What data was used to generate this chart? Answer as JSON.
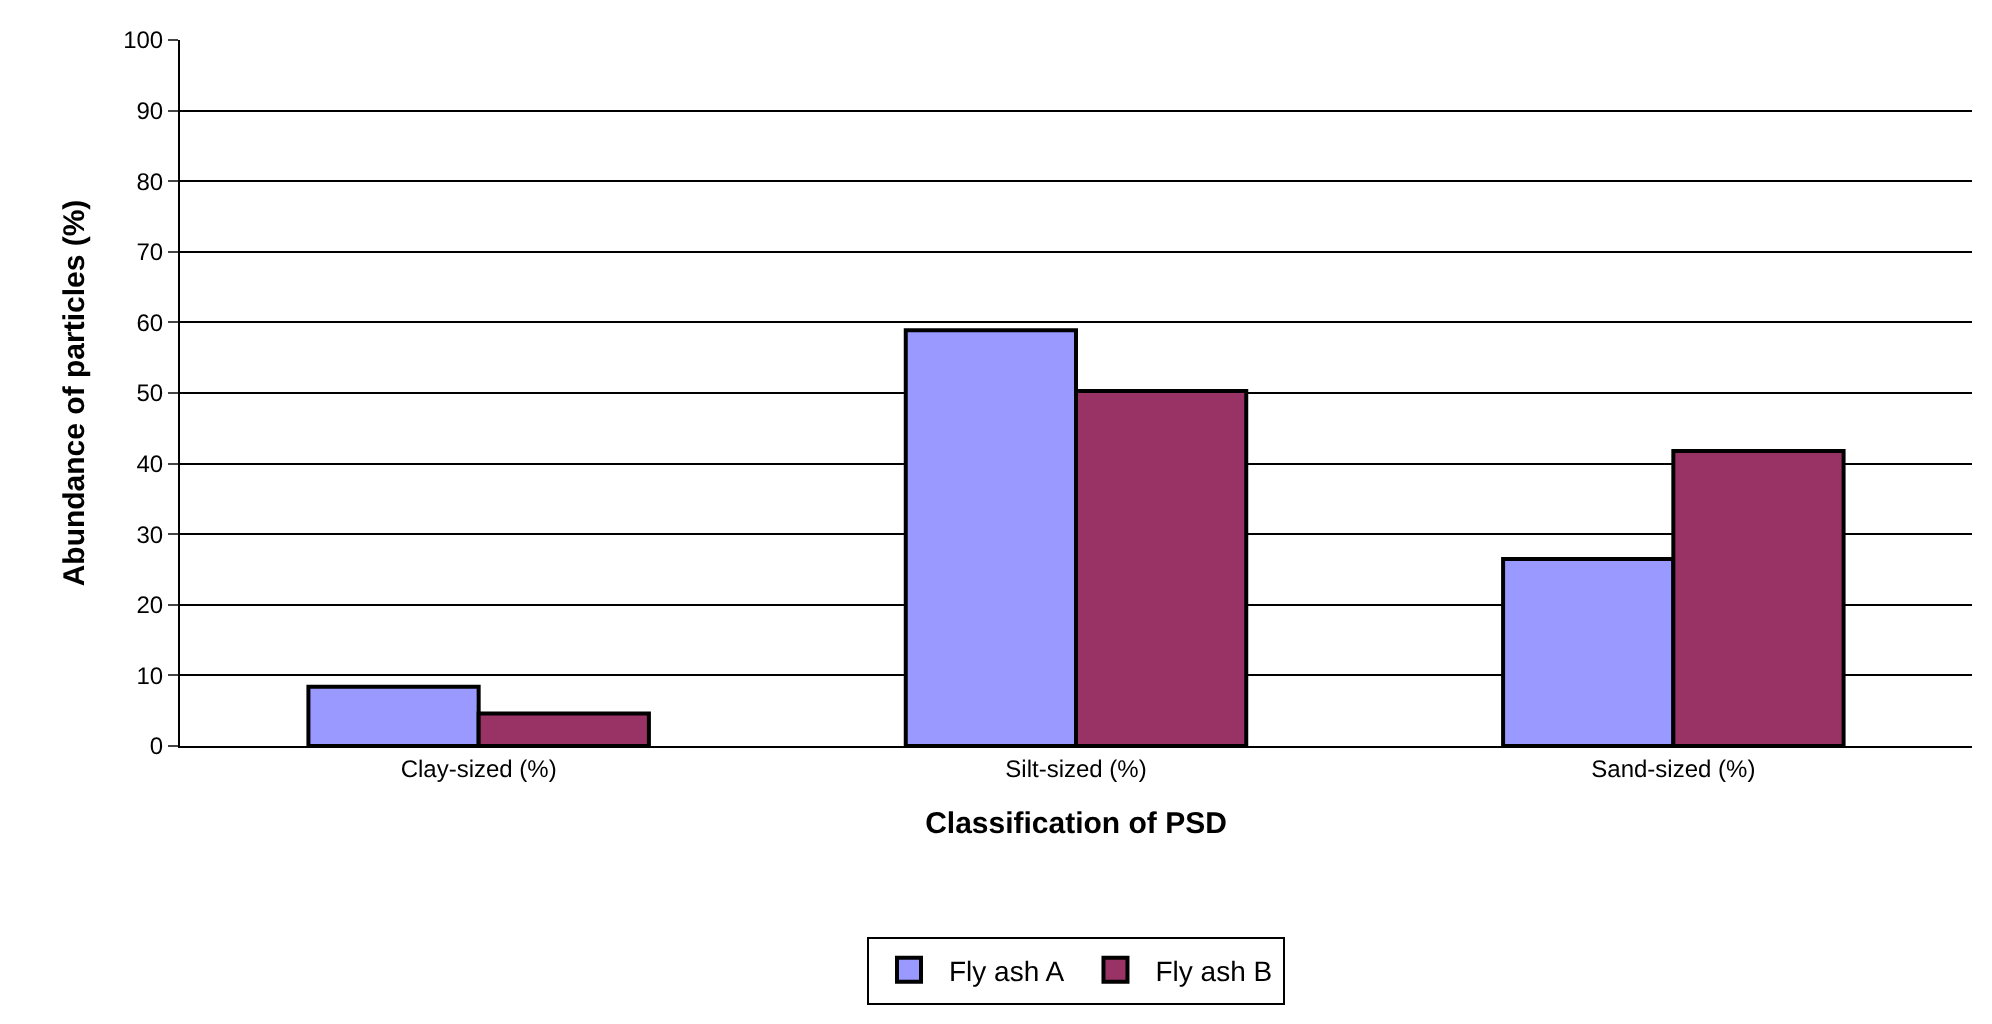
{
  "chart_data": {
    "type": "bar",
    "xlabel": "Classification of PSD",
    "ylabel": "Abundance of particles (%)",
    "categories": [
      "Clay-sized (%)",
      "Silt-sized (%)",
      "Sand-sized (%)"
    ],
    "series": [
      {
        "name": "Fly ash A",
        "color": "#9999ff",
        "values": [
          8.4,
          58.9,
          26.5
        ]
      },
      {
        "name": "Fly ash B",
        "color": "#993366",
        "values": [
          4.6,
          50.3,
          41.8
        ]
      }
    ],
    "ylim": [
      0,
      100
    ],
    "yticks": [
      0,
      10,
      20,
      30,
      40,
      50,
      60,
      70,
      80,
      90,
      100
    ],
    "grid": "y",
    "legend": "bottom"
  }
}
